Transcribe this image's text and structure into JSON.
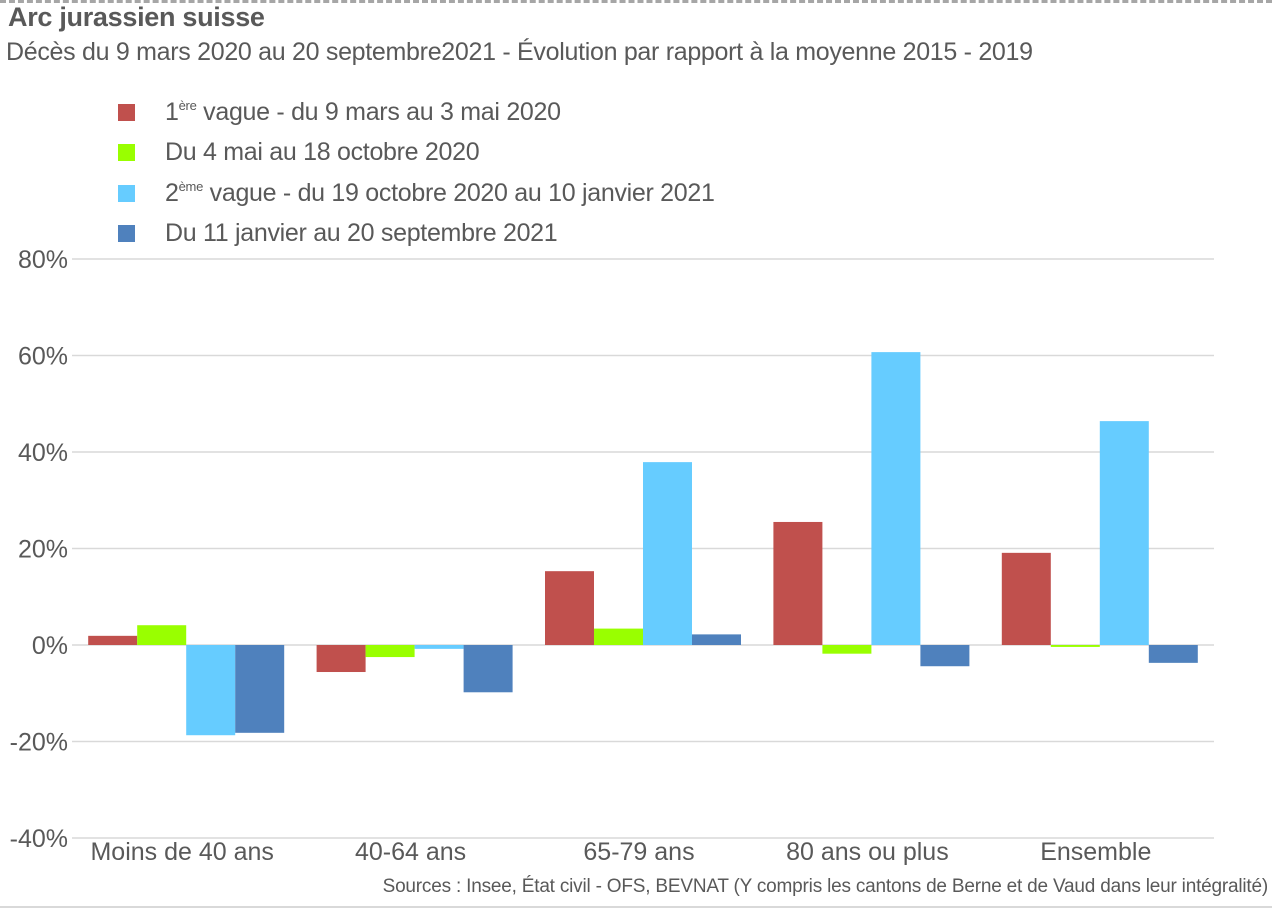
{
  "header": {
    "title": "Arc jurassien suisse",
    "subtitle": "Décès du 9 mars 2020 au 20 septembre2021 - Évolution par rapport à la moyenne 2015 - 2019"
  },
  "legend": [
    {
      "sup_prefix": "1",
      "sup": "ère",
      "text": " vague - du 9 mars au 3 mai 2020",
      "color": "#c0504d"
    },
    {
      "sup_prefix": "",
      "sup": "",
      "text": "Du 4 mai au 18 octobre 2020",
      "color": "#99ff00"
    },
    {
      "sup_prefix": "2",
      "sup": "ème",
      "text": " vague - du 19 octobre 2020 au 10 janvier 2021",
      "color": "#66ccff"
    },
    {
      "sup_prefix": "",
      "sup": "",
      "text": "Du 11 janvier au 20 septembre 2021",
      "color": "#4f81bd"
    }
  ],
  "footer": {
    "source": "Sources : Insee, État civil - OFS, BEVNAT (Y compris les cantons de Berne et de Vaud dans leur intégralité)"
  },
  "chart_data": {
    "type": "bar",
    "title": "Arc jurassien suisse",
    "subtitle": "Décès du 9 mars 2020 au 20 septembre2021 - Évolution par rapport à la moyenne 2015 - 2019",
    "xlabel": "",
    "ylabel": "",
    "categories": [
      "Moins de 40 ans",
      "40-64 ans",
      "65-79 ans",
      "80 ans ou plus",
      "Ensemble"
    ],
    "series": [
      {
        "name": "1ère vague - du 9 mars au 3 mai 2020",
        "color": "#c0504d",
        "values": [
          1.9,
          -5.6,
          15.3,
          25.5,
          19.1
        ]
      },
      {
        "name": "Du 4 mai au 18 octobre 2020",
        "color": "#99ff00",
        "values": [
          4.1,
          -2.5,
          3.4,
          -1.8,
          -0.4
        ]
      },
      {
        "name": "2ème vague - du 19 octobre 2020 au 10 janvier 2021",
        "color": "#66ccff",
        "values": [
          -18.7,
          -0.8,
          37.9,
          60.7,
          46.4
        ]
      },
      {
        "name": "Du 11 janvier au 20 septembre 2021",
        "color": "#4f81bd",
        "values": [
          -18.2,
          -9.8,
          2.2,
          -4.4,
          -3.7
        ]
      }
    ],
    "ylim": [
      -40,
      80
    ],
    "yticks": [
      80,
      60,
      40,
      20,
      0,
      -20,
      -40
    ],
    "ytick_labels": [
      "80%",
      "60%",
      "40%",
      "20%",
      "0%",
      "-20%",
      "-40%"
    ],
    "grid": true,
    "legend_position": "top-left"
  }
}
